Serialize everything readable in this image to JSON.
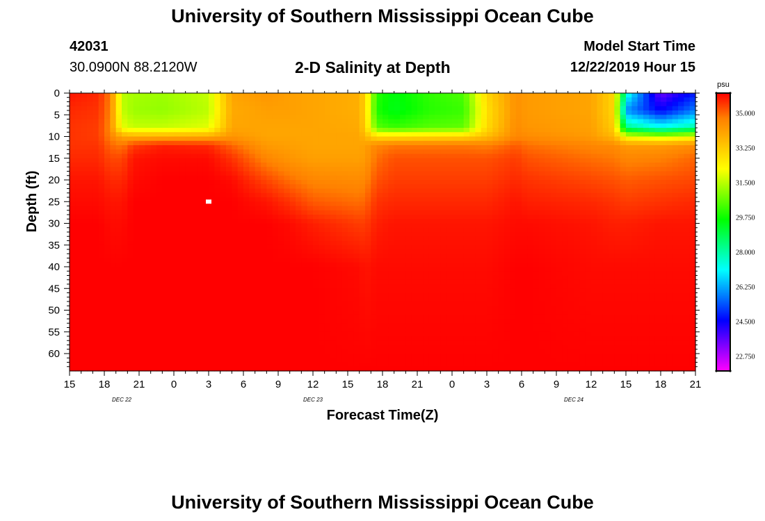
{
  "header": {
    "title": "University of Southern Mississippi Ocean Cube",
    "station_id": "42031",
    "coordinates": "30.0900N 88.2120W",
    "plot_title": "2-D Salinity at Depth",
    "model_start_label": "Model Start Time",
    "model_start_time": "12/22/2019 Hour 15"
  },
  "footer": {
    "title": "University of Southern Mississippi Ocean Cube"
  },
  "chart_data": {
    "type": "heatmap",
    "title": "2-D Salinity at Depth",
    "xlabel": "Forecast Time(Z)",
    "ylabel": "Depth (ft)",
    "x_tick_labels": [
      "15",
      "18",
      "21",
      "0",
      "3",
      "6",
      "9",
      "12",
      "15",
      "18",
      "21",
      "0",
      "3",
      "6",
      "9",
      "12",
      "15",
      "18",
      "21"
    ],
    "x_hours_range": [
      0,
      54
    ],
    "date_labels": [
      {
        "label": "DEC 22",
        "hour": 4.5
      },
      {
        "label": "DEC 23",
        "hour": 21
      },
      {
        "label": "DEC 24",
        "hour": 43.5
      }
    ],
    "y_ticks": [
      0,
      5,
      10,
      15,
      20,
      25,
      30,
      35,
      40,
      45,
      50,
      55,
      60
    ],
    "ylim": [
      0,
      64
    ],
    "colorbar": {
      "unit": "psu",
      "range": [
        22,
        36
      ],
      "labels": [
        "35.000",
        "33.250",
        "31.500",
        "29.750",
        "28.000",
        "26.250",
        "24.500",
        "22.750"
      ],
      "colors": [
        "#ff00ff",
        "#8000ff",
        "#0000ff",
        "#0080ff",
        "#00ffff",
        "#00ff80",
        "#00ff00",
        "#80ff00",
        "#ffff00",
        "#ffc000",
        "#ff8000",
        "#ff0000"
      ]
    },
    "salinity_field": {
      "hours": [
        0,
        2.5,
        3.5,
        4.5,
        5.5,
        8,
        12,
        14,
        17,
        19,
        21,
        25,
        25.5,
        26.5,
        28,
        31,
        34,
        36,
        38.5,
        39.5,
        45,
        47,
        48,
        51,
        54
      ],
      "depths_ft": [
        0,
        4,
        8,
        10,
        12,
        15,
        20,
        25,
        30,
        40,
        64
      ],
      "values": [
        [
          35.8,
          35.6,
          35.5,
          35.5,
          35.5,
          35.6,
          35.8,
          35.9,
          36.0,
          36.0,
          36.0
        ],
        [
          35.6,
          35.5,
          35.4,
          35.4,
          35.5,
          35.6,
          35.8,
          35.9,
          36.0,
          36.0,
          36.0
        ],
        [
          34.8,
          34.7,
          34.6,
          34.7,
          35.0,
          35.3,
          35.6,
          35.8,
          35.9,
          36.0,
          36.0
        ],
        [
          31.5,
          31.6,
          32.0,
          34.0,
          34.8,
          35.3,
          35.6,
          35.8,
          35.9,
          36.0,
          36.0
        ],
        [
          31.3,
          31.2,
          31.6,
          33.8,
          35.4,
          35.8,
          35.9,
          36.0,
          36.0,
          36.0,
          36.0
        ],
        [
          31.2,
          31.1,
          31.6,
          33.8,
          35.7,
          35.9,
          36.0,
          36.0,
          36.0,
          36.0,
          36.0
        ],
        [
          31.6,
          31.5,
          31.9,
          33.9,
          35.6,
          35.9,
          36.0,
          36.0,
          36.0,
          36.0,
          36.0
        ],
        [
          34.0,
          33.9,
          34.0,
          34.3,
          35.0,
          35.5,
          35.9,
          36.0,
          36.0,
          36.0,
          36.0
        ],
        [
          34.3,
          34.1,
          34.0,
          34.0,
          34.2,
          34.6,
          35.3,
          35.8,
          36.0,
          36.0,
          36.0
        ],
        [
          34.1,
          34.1,
          34.0,
          34.0,
          34.1,
          34.3,
          34.9,
          35.5,
          35.9,
          36.0,
          36.0
        ],
        [
          34.0,
          34.0,
          34.0,
          34.0,
          34.0,
          34.1,
          34.6,
          35.1,
          35.7,
          36.0,
          36.0
        ],
        [
          33.8,
          33.8,
          33.9,
          34.0,
          34.0,
          34.1,
          34.5,
          34.9,
          35.4,
          35.9,
          36.0
        ],
        [
          33.0,
          33.0,
          33.1,
          33.6,
          34.1,
          34.2,
          34.6,
          35.0,
          35.4,
          35.8,
          36.0
        ],
        [
          30.0,
          29.9,
          30.5,
          32.8,
          34.6,
          34.9,
          35.2,
          35.5,
          35.7,
          35.9,
          36.0
        ],
        [
          29.5,
          29.4,
          30.2,
          32.8,
          34.8,
          35.2,
          35.4,
          35.6,
          35.8,
          35.9,
          36.0
        ],
        [
          30.1,
          30.0,
          30.5,
          32.9,
          34.8,
          35.2,
          35.4,
          35.6,
          35.8,
          35.9,
          36.0
        ],
        [
          30.4,
          30.2,
          30.6,
          33.0,
          34.8,
          35.2,
          35.4,
          35.6,
          35.8,
          35.9,
          36.0
        ],
        [
          33.0,
          32.8,
          32.9,
          33.5,
          34.7,
          35.2,
          35.4,
          35.6,
          35.8,
          35.9,
          36.0
        ],
        [
          34.4,
          34.4,
          34.5,
          34.6,
          35.1,
          35.4,
          35.6,
          35.8,
          35.9,
          36.0,
          36.0
        ],
        [
          34.2,
          34.2,
          34.3,
          34.5,
          34.9,
          35.2,
          35.5,
          35.7,
          35.9,
          36.0,
          36.0
        ],
        [
          34.0,
          34.0,
          34.1,
          34.2,
          34.6,
          34.9,
          35.3,
          35.6,
          35.8,
          35.9,
          36.0
        ],
        [
          33.0,
          33.0,
          33.2,
          33.6,
          34.5,
          34.8,
          35.2,
          35.5,
          35.7,
          35.9,
          36.0
        ],
        [
          27.5,
          26.0,
          28.3,
          32.0,
          34.2,
          34.6,
          35.1,
          35.4,
          35.7,
          35.9,
          36.0
        ],
        [
          23.5,
          24.5,
          27.3,
          31.5,
          34.2,
          34.7,
          35.2,
          35.5,
          35.8,
          35.9,
          36.0
        ],
        [
          24.8,
          25.8,
          28.0,
          32.0,
          34.5,
          35.0,
          35.3,
          35.6,
          35.8,
          35.9,
          36.0
        ]
      ]
    },
    "marker": {
      "hour": 12,
      "depth_ft": 25
    }
  }
}
